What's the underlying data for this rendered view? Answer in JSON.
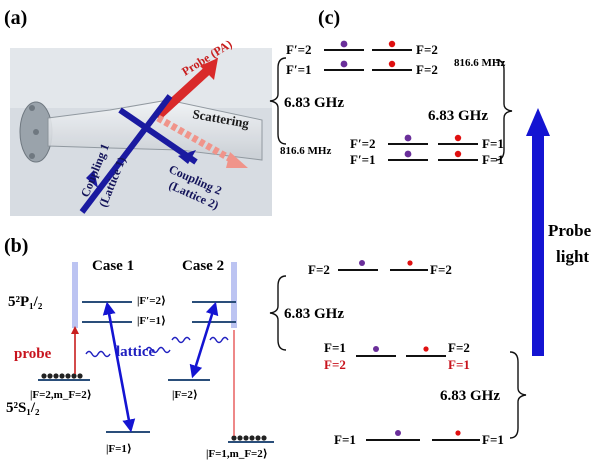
{
  "panel_a": {
    "label": "(a)",
    "probe": "Probe (PA)",
    "scattering": "Scattering",
    "coupling1": "Coupling 1",
    "lattice1": "(Lattice 1)",
    "coupling2": "Coupling 2",
    "lattice2": "(Lattice 2)"
  },
  "panel_b": {
    "label": "(b)",
    "case1": "Case 1",
    "case2": "Case 2",
    "p_state": "5²P₁/₂",
    "s_state": "5²S₁/₂",
    "f2_excited": "|F′=2⟩",
    "f1_excited": "|F′=1⟩",
    "probe": "probe",
    "lattice": "lattice",
    "ground_case1": "|F=2,m_F=2⟩",
    "f2_ground": "|F=2⟩",
    "f1_ground_case1": "|F=1⟩",
    "ground_case2": "|F=1,m_F=2⟩"
  },
  "panel_c": {
    "label": "(c)",
    "top_left_upper": "F′=2",
    "top_left_lower": "F′=1",
    "top_right_upper": "F=2",
    "top_right_lower": "F=2",
    "top_split": "816.6 MHz",
    "gap_left": "6.83 GHz",
    "gap_right": "6.83 GHz",
    "bot_split": "816.6 MHz",
    "bot_left_upper": "F′=2",
    "bot_left_lower": "F′=1",
    "bot_right_upper": "F=1",
    "bot_right_lower": "F=1"
  },
  "probe_light": {
    "line1": "Probe",
    "line2": "light"
  },
  "panel_d": {
    "top_left": "F=2",
    "top_right": "F=2",
    "gap_top": "6.83 GHz",
    "mid_left_black": "F=1",
    "mid_left_red": "F=2",
    "mid_right_black": "F=2",
    "mid_right_red": "F=1",
    "gap_bottom": "6.83 GHz",
    "bot_left": "F=1",
    "bot_right": "F=1"
  },
  "colors": {
    "purple_dot": "#6a2f9a",
    "red_dot": "#e01010",
    "blue_arrow": "#1414d2",
    "red_text": "#c8141e",
    "probe_red": "#e23a3a",
    "level_blue": "#2a4e7a"
  }
}
